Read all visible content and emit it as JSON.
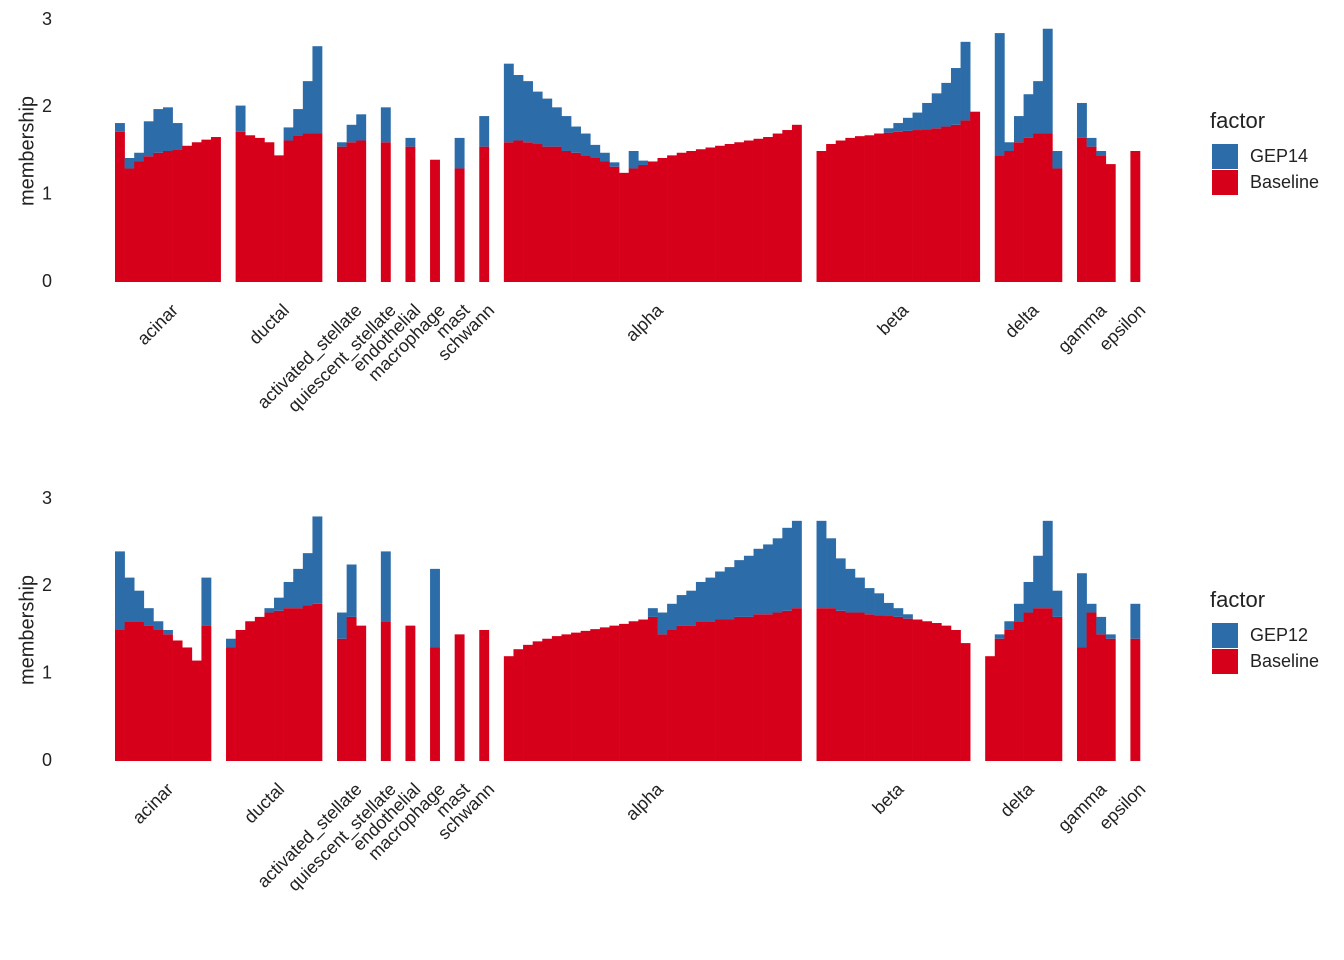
{
  "chart_data": [
    {
      "type": "structure",
      "y_label": "membership",
      "ylim": [
        0,
        3
      ],
      "yticks": [
        0,
        1,
        2,
        3
      ],
      "legend_title": "factor",
      "series": [
        {
          "name": "GEP14",
          "color": "#2c6ca8"
        },
        {
          "name": "Baseline",
          "color": "#d7001a"
        }
      ],
      "groups": [
        {
          "name": "acinar",
          "values": [
            [
              0.1,
              0.12,
              0.1,
              0.4,
              0.5,
              0.5,
              0.3,
              0,
              0,
              0,
              0
            ],
            [
              1.72,
              1.3,
              1.38,
              1.44,
              1.48,
              1.5,
              1.52,
              1.56,
              1.6,
              1.63,
              1.66
            ]
          ]
        },
        {
          "name": "ductal",
          "values": [
            [
              0.3,
              0,
              0,
              0,
              0,
              0.15,
              0.3,
              0.6,
              1.0
            ],
            [
              1.72,
              1.68,
              1.65,
              1.6,
              1.45,
              1.62,
              1.68,
              1.7,
              1.7
            ]
          ]
        },
        {
          "name": "activated_stellate",
          "values": [
            [
              0.05,
              0.2,
              0.3
            ],
            [
              1.55,
              1.6,
              1.62
            ]
          ]
        },
        {
          "name": "quiescent_stellate",
          "values": [
            [
              0.4
            ],
            [
              1.6
            ]
          ]
        },
        {
          "name": "endothelial",
          "values": [
            [
              0.1
            ],
            [
              1.55
            ]
          ]
        },
        {
          "name": "macrophage",
          "values": [
            [
              0
            ],
            [
              1.4
            ]
          ]
        },
        {
          "name": "mast",
          "values": [
            [
              0.35
            ],
            [
              1.3
            ]
          ]
        },
        {
          "name": "schwann",
          "values": [
            [
              0.35
            ],
            [
              1.55
            ]
          ]
        },
        {
          "name": "alpha",
          "values": [
            [
              0.9,
              0.75,
              0.7,
              0.6,
              0.55,
              0.45,
              0.4,
              0.3,
              0.25,
              0.15,
              0.1,
              0.05,
              0,
              0.2,
              0.05,
              0,
              0,
              0,
              0,
              0,
              0,
              0,
              0,
              0,
              0,
              0,
              0,
              0,
              0,
              0,
              0
            ],
            [
              1.6,
              1.62,
              1.6,
              1.58,
              1.55,
              1.55,
              1.5,
              1.48,
              1.45,
              1.42,
              1.38,
              1.32,
              1.25,
              1.3,
              1.34,
              1.38,
              1.42,
              1.45,
              1.48,
              1.5,
              1.52,
              1.54,
              1.56,
              1.58,
              1.6,
              1.62,
              1.64,
              1.66,
              1.7,
              1.74,
              1.8
            ]
          ]
        },
        {
          "name": "beta",
          "values": [
            [
              0,
              0,
              0,
              0,
              0,
              0,
              0,
              0.05,
              0.1,
              0.15,
              0.2,
              0.3,
              0.4,
              0.5,
              0.65,
              0.9,
              0
            ],
            [
              1.5,
              1.58,
              1.62,
              1.65,
              1.67,
              1.68,
              1.7,
              1.71,
              1.72,
              1.73,
              1.74,
              1.75,
              1.76,
              1.78,
              1.8,
              1.85,
              1.95
            ]
          ]
        },
        {
          "name": "delta",
          "values": [
            [
              1.4,
              0.1,
              0.3,
              0.5,
              0.6,
              1.2,
              0.2
            ],
            [
              1.45,
              1.5,
              1.6,
              1.65,
              1.7,
              1.7,
              1.3
            ]
          ]
        },
        {
          "name": "gamma",
          "values": [
            [
              0.4,
              0.1,
              0.05,
              0
            ],
            [
              1.65,
              1.55,
              1.45,
              1.35
            ]
          ]
        },
        {
          "name": "epsilon",
          "values": [
            [
              0
            ],
            [
              1.5
            ]
          ]
        }
      ]
    },
    {
      "type": "structure",
      "y_label": "membership",
      "ylim": [
        0,
        3
      ],
      "yticks": [
        0,
        1,
        2,
        3
      ],
      "legend_title": "factor",
      "series": [
        {
          "name": "GEP12",
          "color": "#2c6ca8"
        },
        {
          "name": "Baseline",
          "color": "#d7001a"
        }
      ],
      "groups": [
        {
          "name": "acinar",
          "values": [
            [
              0.9,
              0.5,
              0.35,
              0.2,
              0.1,
              0.05,
              0,
              0,
              0,
              0.55
            ],
            [
              1.5,
              1.6,
              1.6,
              1.55,
              1.5,
              1.45,
              1.38,
              1.3,
              1.15,
              1.55
            ]
          ]
        },
        {
          "name": "ductal",
          "values": [
            [
              0.1,
              0,
              0,
              0,
              0.05,
              0.15,
              0.3,
              0.45,
              0.6,
              1.0
            ],
            [
              1.3,
              1.5,
              1.6,
              1.65,
              1.7,
              1.72,
              1.75,
              1.75,
              1.78,
              1.8
            ]
          ]
        },
        {
          "name": "activated_stellate",
          "values": [
            [
              0.3,
              0.6,
              0
            ],
            [
              1.4,
              1.65,
              1.55
            ]
          ]
        },
        {
          "name": "quiescent_stellate",
          "values": [
            [
              0.8
            ],
            [
              1.6
            ]
          ]
        },
        {
          "name": "endothelial",
          "values": [
            [
              0
            ],
            [
              1.55
            ]
          ]
        },
        {
          "name": "macrophage",
          "values": [
            [
              0.9
            ],
            [
              1.3
            ]
          ]
        },
        {
          "name": "mast",
          "values": [
            [
              0
            ],
            [
              1.45
            ]
          ]
        },
        {
          "name": "schwann",
          "values": [
            [
              0
            ],
            [
              1.5
            ]
          ]
        },
        {
          "name": "alpha",
          "values": [
            [
              0,
              0,
              0,
              0,
              0,
              0,
              0,
              0,
              0,
              0,
              0,
              0,
              0,
              0,
              0,
              0.1,
              0.25,
              0.3,
              0.35,
              0.4,
              0.45,
              0.5,
              0.55,
              0.6,
              0.65,
              0.7,
              0.75,
              0.8,
              0.85,
              0.95,
              1.0
            ],
            [
              1.2,
              1.28,
              1.33,
              1.37,
              1.4,
              1.43,
              1.45,
              1.47,
              1.49,
              1.51,
              1.53,
              1.55,
              1.57,
              1.6,
              1.62,
              1.65,
              1.45,
              1.5,
              1.55,
              1.55,
              1.6,
              1.6,
              1.62,
              1.62,
              1.65,
              1.65,
              1.68,
              1.68,
              1.7,
              1.72,
              1.75
            ]
          ]
        },
        {
          "name": "beta",
          "values": [
            [
              1.0,
              0.8,
              0.6,
              0.5,
              0.4,
              0.3,
              0.25,
              0.15,
              0.1,
              0.05,
              0,
              0,
              0,
              0,
              0,
              0
            ],
            [
              1.75,
              1.75,
              1.72,
              1.7,
              1.7,
              1.68,
              1.67,
              1.66,
              1.65,
              1.63,
              1.62,
              1.6,
              1.58,
              1.55,
              1.5,
              1.35
            ]
          ]
        },
        {
          "name": "delta",
          "values": [
            [
              0,
              0.05,
              0.1,
              0.2,
              0.35,
              0.6,
              1.0,
              0.3
            ],
            [
              1.2,
              1.4,
              1.5,
              1.6,
              1.7,
              1.75,
              1.75,
              1.65
            ]
          ]
        },
        {
          "name": "gamma",
          "values": [
            [
              0.85,
              0.1,
              0.2,
              0.05
            ],
            [
              1.3,
              1.7,
              1.45,
              1.4
            ]
          ]
        },
        {
          "name": "epsilon",
          "values": [
            [
              0.4
            ],
            [
              1.4
            ]
          ]
        }
      ]
    }
  ]
}
